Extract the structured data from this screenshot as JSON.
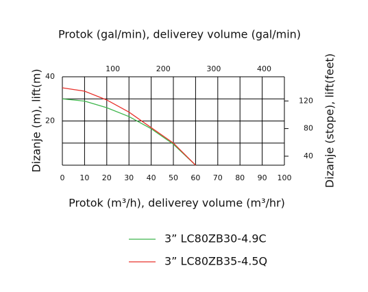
{
  "chart_data": {
    "type": "line",
    "title": "Protok (gal/min),  deliverey volume (gal/min)",
    "x_label": "Protok (m³/h),  deliverey volume (m³/hr)",
    "y_label": "Dizanje (m),   lift(m)",
    "y2_label": "Dizanje (stope),  lift(feet)",
    "x": [
      0,
      10,
      20,
      30,
      40,
      50,
      60
    ],
    "series": [
      {
        "name": "3” LC80ZB30-4.9C",
        "color": "#3cb54a",
        "values": [
          30,
          29,
          26,
          22,
          16.5,
          9.5,
          0
        ]
      },
      {
        "name": "3” LC80ZB35-4.5Q",
        "color": "#e8302a",
        "values": [
          35,
          33.5,
          29.5,
          24,
          17,
          10,
          0
        ]
      }
    ],
    "xlim": [
      0,
      100
    ],
    "xticks": [
      0,
      10,
      20,
      30,
      40,
      50,
      60,
      70,
      80,
      90,
      100
    ],
    "x2lim": [
      0,
      440
    ],
    "x2ticks": [
      100,
      200,
      300,
      400
    ],
    "ylim": [
      0,
      40
    ],
    "yticks": [
      20,
      40
    ],
    "ygrid": [
      0,
      10,
      20,
      30,
      40
    ],
    "y2lim": [
      27,
      155
    ],
    "y2ticks": [
      40,
      80,
      120
    ],
    "grid": true
  }
}
